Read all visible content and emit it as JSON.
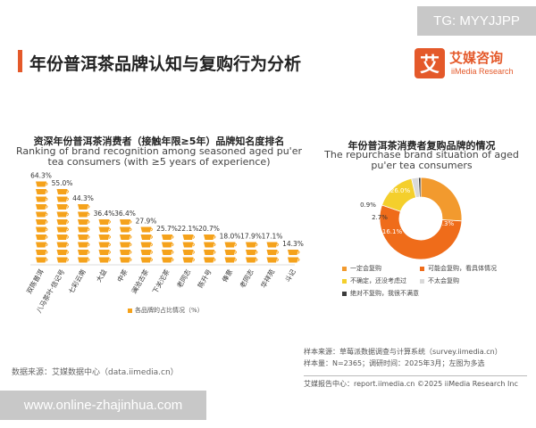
{
  "watermark_top": "TG: MYYJJPP",
  "watermark_bottom": "www.online-zhajinhua.com",
  "page_title": "年份普洱茶品牌认知与复购行为分析",
  "logo": {
    "mark": "艾",
    "cn": "艾媒咨询",
    "en": "iiMedia Research"
  },
  "chart_data": [
    {
      "type": "bar",
      "title": "资深年份普洱茶消费者（接触年限≥5年）品牌知名度排名",
      "subtitle": "Ranking of brand recognition among seasoned aged pu'er tea consumers (with ≥5 years of experience)",
      "categories": [
        "双陈普洱",
        "八马茶叶·信记号",
        "七彩云南",
        "大益",
        "中茶",
        "澜沧古茶",
        "下关沱茶",
        "老同志",
        "陈升号",
        "俸意",
        "老同志",
        "华祥苑",
        "斗记"
      ],
      "values": [
        64.3,
        55.0,
        44.3,
        36.4,
        36.4,
        27.9,
        25.7,
        22.1,
        20.7,
        18.0,
        17.9,
        17.1,
        14.3
      ],
      "labels": [
        "64.3%",
        "55.0%",
        "44.3%",
        "36.4%",
        "36.4%",
        "27.9%",
        "25.7%",
        "22.1%",
        "20.7%",
        "18.0%",
        "17.9%",
        "17.1%",
        "14.3%"
      ],
      "legend": "各品牌的占比情况（%）",
      "ylim": [
        0,
        70
      ],
      "color": "#f5a21b"
    },
    {
      "type": "pie",
      "title": "年份普洱茶消费者复购品牌的情况",
      "subtitle": "The repurchase brand situation of aged pu'er tea consumers",
      "slices": [
        {
          "name": "一定会复购",
          "value": 26.0,
          "label": "26.0%",
          "color": "#f29a2e"
        },
        {
          "name": "可能会复购，看具体情况",
          "value": 54.3,
          "label": "54.3%",
          "color": "#ef6c1a"
        },
        {
          "name": "不确定，还没考虑过",
          "value": 16.1,
          "label": "16.1%",
          "color": "#f4cf2c"
        },
        {
          "name": "不太会复购",
          "value": 2.7,
          "label": "2.7%",
          "color": "#d9d9d9"
        },
        {
          "name": "绝对不复购，我很不满意",
          "value": 0.9,
          "label": "0.9%",
          "color": "#3c3c3c"
        }
      ]
    }
  ],
  "source_left": "数据来源：艾媒数据中心（data.iimedia.cn）",
  "source_right": {
    "line1": "样本来源：草莓派数据调查与计算系统（survey.iimedia.cn）",
    "line2": "样本量：N=2365；调研时间：2025年3月；左图为多选",
    "line3": "艾媒报告中心：report.iimedia.cn    ©2025  iiMedia Research  Inc"
  }
}
